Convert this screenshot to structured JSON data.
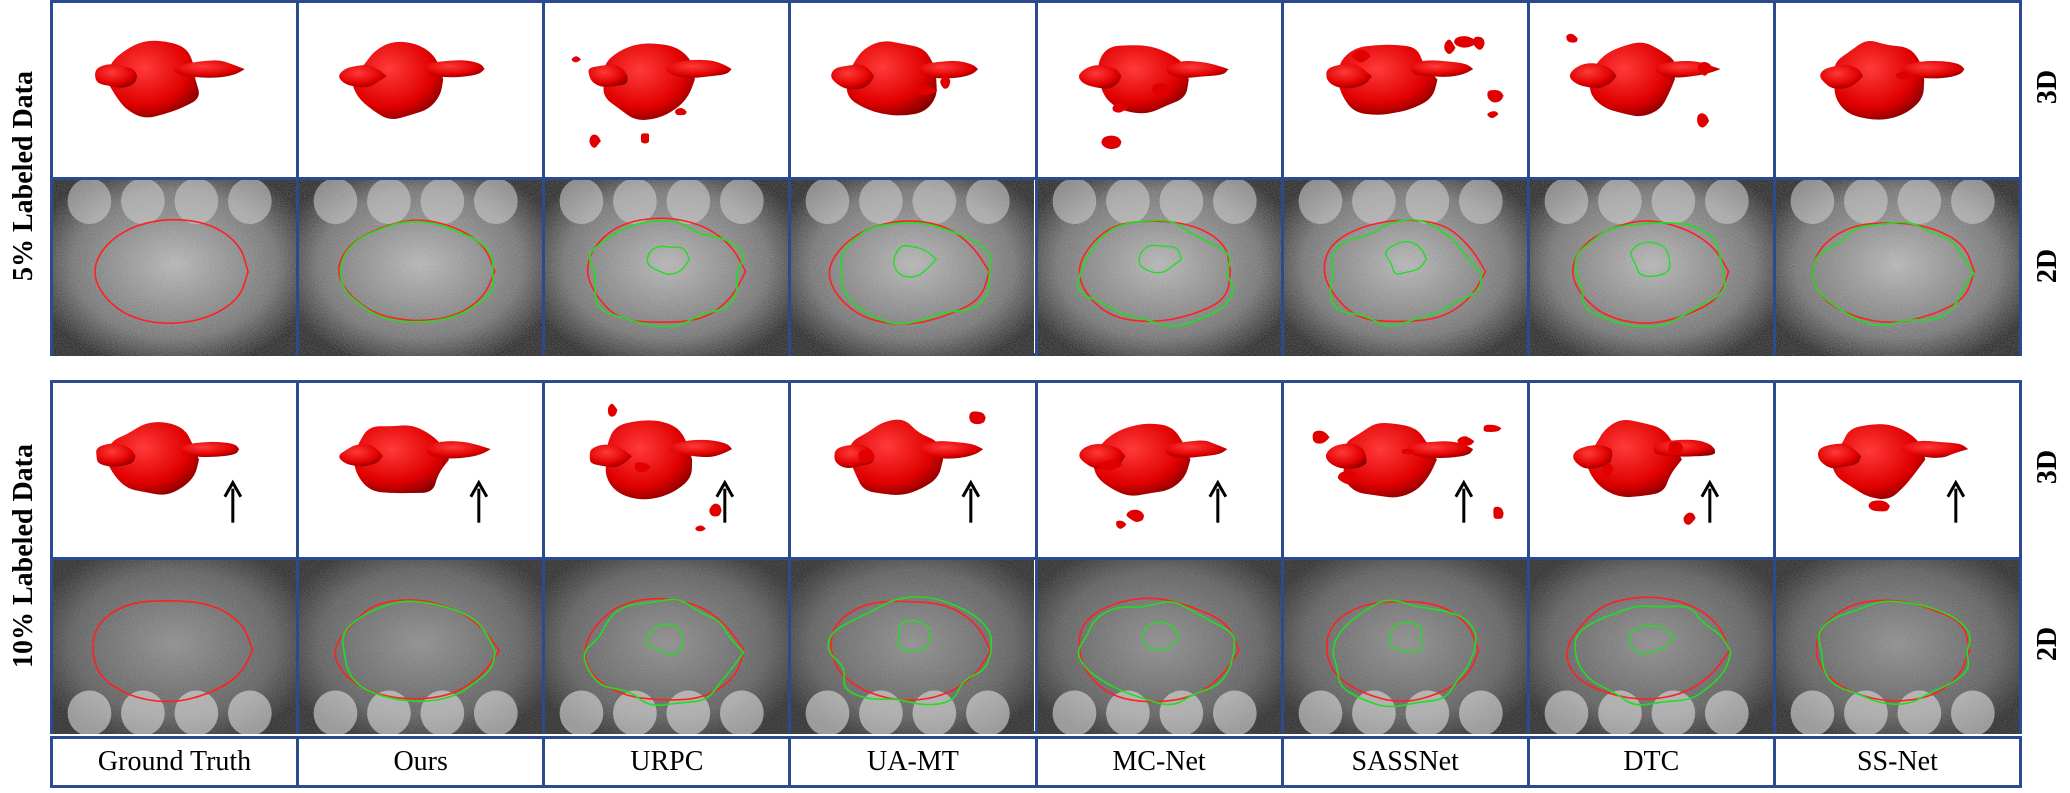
{
  "methods": [
    "Ground Truth",
    "Ours",
    "URPC",
    "UA-MT",
    "MC-Net",
    "SASSNet",
    "DTC",
    "SS-Net"
  ],
  "groups": [
    {
      "label": "5% Labeled Data",
      "rows": [
        "3D",
        "2D"
      ]
    },
    {
      "label": "10% Labeled Data",
      "rows": [
        "3D",
        "2D"
      ]
    }
  ],
  "colors": {
    "border": "#2b4a8f",
    "segmentation_3d": "#e00000",
    "ground_truth_contour": "#ff2020",
    "prediction_contour": "#22dd22"
  },
  "icons": {
    "arrow": "up-arrow-icon"
  }
}
